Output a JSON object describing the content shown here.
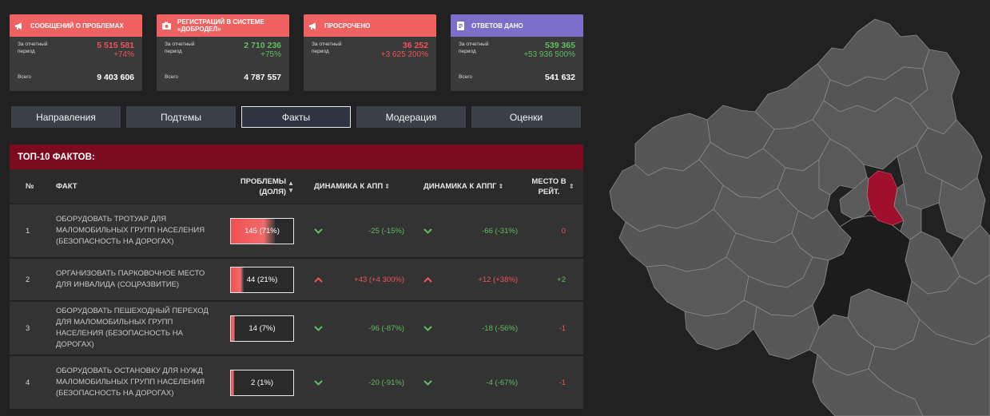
{
  "kpis": [
    {
      "title": "Сообщений о проблемах",
      "icon": "megaphone-icon",
      "head_color": "#f06262",
      "period_label": "За отчетный период",
      "value": "5 515 581",
      "change": "+74%",
      "value_color": "#f05454",
      "total_label": "Всего",
      "total": "9 403 606"
    },
    {
      "title": "Регистраций в системе «Добродел»",
      "icon": "camera-icon",
      "head_color": "#f06262",
      "period_label": "За отчетный период",
      "value": "2 710 236",
      "change": "+75%",
      "value_color": "#5fbf5f",
      "total_label": "Всего",
      "total": "4 787 557"
    },
    {
      "title": "Просрочено",
      "icon": "megaphone-icon",
      "head_color": "#f06262",
      "period_label": "За отчетный период",
      "value": "36 252",
      "change": "+3 625 200%",
      "value_color": "#f05454",
      "total_label": "",
      "total": ""
    },
    {
      "title": "Ответов дано",
      "icon": "document-icon",
      "head_color": "#7b6fc9",
      "period_label": "За отчетный период",
      "value": "539 365",
      "change": "+53 936 500%",
      "value_color": "#5fbf5f",
      "total_label": "Всего",
      "total": "541 632"
    }
  ],
  "tabs": [
    "Направления",
    "Подтемы",
    "Факты",
    "Модерация",
    "Оценки"
  ],
  "active_tab": 2,
  "table": {
    "title": "ТОП-10 ФАКТОВ:",
    "headers": {
      "num": "№",
      "fact": "ФАКТ",
      "problems": "ПРОБЛЕМЫ (ДОЛЯ)",
      "dyn_app": "ДИНАМИКА К АПП",
      "dyn_appg": "ДИНАМИКА К АППГ",
      "place": "МЕСТО В РЕЙТ."
    },
    "rows": [
      {
        "num": "1",
        "fact": "ОБОРУДОВАТЬ ТРОТУАР ДЛЯ МАЛОМОБИЛЬНЫХ ГРУПП НАСЕЛЕНИЯ (БЕЗОПАСНОСТЬ НА ДОРОГАХ)",
        "problems": "145 (71%)",
        "share": 0.71,
        "dyn_app": "-25 (-15%)",
        "dyn_app_dir": "down",
        "dyn_appg": "-66 (-31%)",
        "dyn_appg_dir": "down",
        "place": "0"
      },
      {
        "num": "2",
        "fact": "ОРГАНИЗОВАТЬ ПАРКОВОЧНОЕ МЕСТО ДЛЯ ИНВАЛИДА (СОЦРАЗВИТИЕ)",
        "problems": "44 (21%)",
        "share": 0.21,
        "dyn_app": "+43 (+4 300%)",
        "dyn_app_dir": "up",
        "dyn_appg": "+12 (+38%)",
        "dyn_appg_dir": "up",
        "place": "+2"
      },
      {
        "num": "3",
        "fact": "ОБОРУДОВАТЬ ПЕШЕХОДНЫЙ ПЕРЕХОД ДЛЯ МАЛОМОБИЛЬНЫХ ГРУПП НАСЕЛЕНИЯ (БЕЗОПАСНОСТЬ НА ДОРОГАХ)",
        "problems": "14 (7%)",
        "share": 0.07,
        "dyn_app": "-96 (-87%)",
        "dyn_app_dir": "down",
        "dyn_appg": "-18 (-56%)",
        "dyn_appg_dir": "down",
        "place": "-1"
      },
      {
        "num": "4",
        "fact": "ОБОРУДОВАТЬ ОСТАНОВКУ ДЛЯ НУЖД МАЛОМОБИЛЬНЫХ ГРУПП НАСЕЛЕНИЯ (БЕЗОПАСНОСТЬ НА ДОРОГАХ)",
        "problems": "2 (1%)",
        "share": 0.01,
        "dyn_app": "-20 (-91%)",
        "dyn_app_dir": "down",
        "dyn_appg": "-4 (-67%)",
        "dyn_appg_dir": "down",
        "place": "-1"
      }
    ]
  },
  "colors": {
    "up": "#f05454",
    "down": "#5fbf5f",
    "region": "#575757",
    "highlight": "#a0102c",
    "moscow": "#1c1c1c"
  }
}
